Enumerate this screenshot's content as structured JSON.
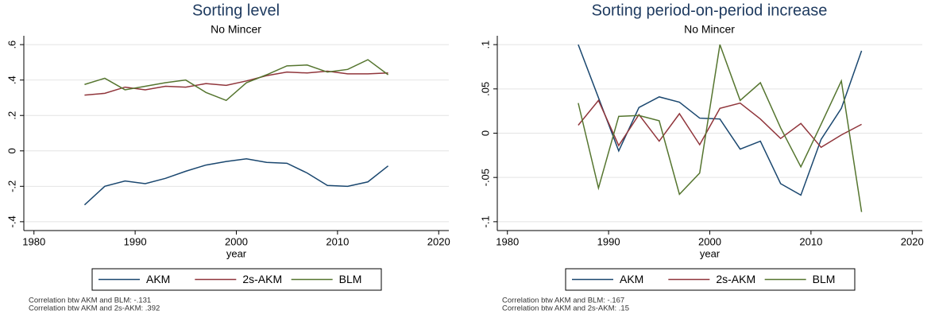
{
  "chart_data": [
    {
      "type": "line",
      "title": "Sorting level",
      "subtitle": "No Mincer",
      "xlabel": "year",
      "x": [
        1985,
        1987,
        1989,
        1991,
        1993,
        1995,
        1997,
        1999,
        2001,
        2003,
        2005,
        2007,
        2009,
        2011,
        2013,
        2015
      ],
      "xlim": [
        1979,
        2021
      ],
      "xticks": [
        1980,
        1990,
        2000,
        2010,
        2020
      ],
      "ylim": [
        -0.45,
        0.65
      ],
      "yticks": [
        {
          "value": -0.4,
          "label": "-.4"
        },
        {
          "value": -0.2,
          "label": "-.2"
        },
        0,
        {
          "value": 0.2,
          "label": ".2"
        },
        {
          "value": 0.4,
          "label": ".4"
        },
        {
          "value": 0.6,
          "label": ".6"
        }
      ],
      "grid": true,
      "legend": "bottom",
      "series": [
        {
          "name": "AKM",
          "color": "#1a476f",
          "values": [
            -0.305,
            -0.2,
            -0.17,
            -0.185,
            -0.155,
            -0.115,
            -0.08,
            -0.06,
            -0.045,
            -0.065,
            -0.07,
            -0.125,
            -0.195,
            -0.2,
            -0.175,
            -0.085
          ]
        },
        {
          "name": "2s-AKM",
          "color": "#90353b",
          "values": [
            0.315,
            0.325,
            0.36,
            0.345,
            0.365,
            0.36,
            0.38,
            0.37,
            0.395,
            0.425,
            0.445,
            0.44,
            0.45,
            0.435,
            0.435,
            0.44
          ]
        },
        {
          "name": "BLM",
          "color": "#55752f",
          "values": [
            0.375,
            0.41,
            0.345,
            0.365,
            0.385,
            0.4,
            0.33,
            0.285,
            0.385,
            0.43,
            0.48,
            0.485,
            0.445,
            0.46,
            0.515,
            0.43
          ]
        }
      ],
      "note": [
        "Correlation btw AKM and BLM: -.131",
        "Correlation btw AKM and 2s-AKM:  .392"
      ]
    },
    {
      "type": "line",
      "title": "Sorting period-on-period increase",
      "subtitle": "No Mincer",
      "xlabel": "year",
      "x": [
        1987,
        1989,
        1991,
        1993,
        1995,
        1997,
        1999,
        2001,
        2003,
        2005,
        2007,
        2009,
        2011,
        2013,
        2015
      ],
      "xlim": [
        1979,
        2021
      ],
      "xticks": [
        1980,
        1990,
        2000,
        2010,
        2020
      ],
      "ylim": [
        -0.11,
        0.11
      ],
      "yticks": [
        {
          "value": -0.1,
          "label": "-.1"
        },
        {
          "value": -0.05,
          "label": "-.05"
        },
        0,
        {
          "value": 0.05,
          "label": ".05"
        },
        {
          "value": 0.1,
          "label": ".1"
        }
      ],
      "grid": true,
      "legend": "bottom",
      "series": [
        {
          "name": "AKM",
          "color": "#1a476f",
          "values": [
            0.1,
            0.04,
            -0.02,
            0.029,
            0.041,
            0.035,
            0.017,
            0.016,
            -0.018,
            -0.009,
            -0.057,
            -0.07,
            -0.007,
            0.028,
            0.093
          ]
        },
        {
          "name": "2s-AKM",
          "color": "#90353b",
          "values": [
            0.009,
            0.037,
            -0.014,
            0.021,
            -0.009,
            0.022,
            -0.013,
            0.028,
            0.034,
            0.016,
            -0.006,
            0.011,
            -0.016,
            -0.002,
            0.01
          ]
        },
        {
          "name": "BLM",
          "color": "#55752f",
          "values": [
            0.034,
            -0.062,
            0.019,
            0.02,
            0.014,
            -0.069,
            -0.045,
            0.1,
            0.037,
            0.057,
            0.006,
            -0.038,
            0.01,
            0.059,
            -0.089
          ]
        }
      ],
      "note": [
        "Correlation btw AKM and BLM: -.167",
        "Correlation btw AKM and 2s-AKM:  .15"
      ]
    }
  ]
}
